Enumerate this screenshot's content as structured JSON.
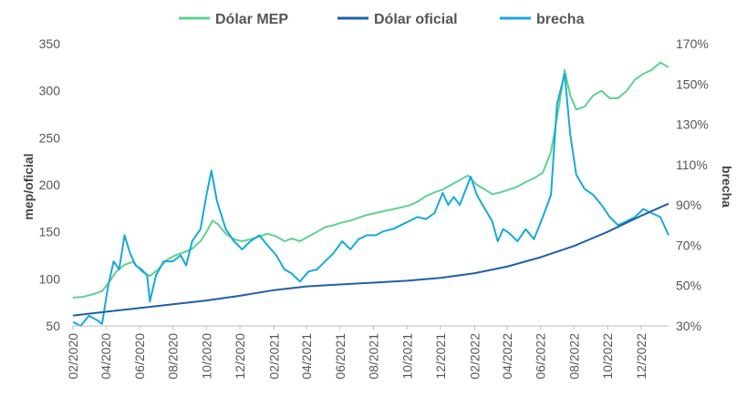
{
  "chart_data": {
    "type": "line",
    "title": "",
    "ylabel": "mep/oficial",
    "y2label": "brecha",
    "ylim": [
      50,
      350
    ],
    "y2lim": [
      30,
      170
    ],
    "yticks": [
      "50",
      "100",
      "150",
      "200",
      "250",
      "300",
      "350"
    ],
    "y2ticks": [
      "30%",
      "50%",
      "70%",
      "90%",
      "110%",
      "130%",
      "150%",
      "170%"
    ],
    "xticks": [
      "02/2020",
      "04/2020",
      "06/2020",
      "08/2020",
      "10/2020",
      "12/2020",
      "02/2021",
      "04/2021",
      "06/2021",
      "08/2021",
      "10/2021",
      "12/2021",
      "02/2022",
      "04/2022",
      "06/2022",
      "08/2022",
      "10/2022",
      "12/2022"
    ],
    "xrange": [
      "2020-02-01",
      "2023-01-20"
    ],
    "legend_position": "top",
    "grid": false,
    "series": [
      {
        "name": "Dólar MEP",
        "axis": "left",
        "color": "#5fd18f",
        "points": [
          [
            "2020-02-01",
            80
          ],
          [
            "2020-02-20",
            81
          ],
          [
            "2020-03-10",
            84
          ],
          [
            "2020-03-25",
            87
          ],
          [
            "2020-04-05",
            95
          ],
          [
            "2020-04-20",
            108
          ],
          [
            "2020-05-05",
            115
          ],
          [
            "2020-05-20",
            118
          ],
          [
            "2020-06-05",
            108
          ],
          [
            "2020-06-20",
            103
          ],
          [
            "2020-07-05",
            110
          ],
          [
            "2020-07-20",
            120
          ],
          [
            "2020-08-05",
            125
          ],
          [
            "2020-08-20",
            128
          ],
          [
            "2020-09-05",
            132
          ],
          [
            "2020-09-20",
            140
          ],
          [
            "2020-10-01",
            150
          ],
          [
            "2020-10-12",
            162
          ],
          [
            "2020-10-22",
            158
          ],
          [
            "2020-11-05",
            148
          ],
          [
            "2020-11-20",
            142
          ],
          [
            "2020-12-05",
            140
          ],
          [
            "2020-12-20",
            142
          ],
          [
            "2021-01-05",
            145
          ],
          [
            "2021-01-20",
            148
          ],
          [
            "2021-02-05",
            145
          ],
          [
            "2021-02-20",
            140
          ],
          [
            "2021-03-05",
            143
          ],
          [
            "2021-03-20",
            140
          ],
          [
            "2021-04-05",
            145
          ],
          [
            "2021-04-20",
            150
          ],
          [
            "2021-05-05",
            155
          ],
          [
            "2021-05-20",
            157
          ],
          [
            "2021-06-05",
            160
          ],
          [
            "2021-06-20",
            162
          ],
          [
            "2021-07-05",
            165
          ],
          [
            "2021-07-20",
            168
          ],
          [
            "2021-08-05",
            170
          ],
          [
            "2021-08-20",
            172
          ],
          [
            "2021-09-05",
            174
          ],
          [
            "2021-09-20",
            176
          ],
          [
            "2021-10-05",
            178
          ],
          [
            "2021-10-20",
            182
          ],
          [
            "2021-11-05",
            188
          ],
          [
            "2021-11-20",
            192
          ],
          [
            "2021-12-05",
            195
          ],
          [
            "2021-12-20",
            200
          ],
          [
            "2022-01-05",
            205
          ],
          [
            "2022-01-20",
            210
          ],
          [
            "2022-02-05",
            200
          ],
          [
            "2022-02-20",
            195
          ],
          [
            "2022-03-05",
            190
          ],
          [
            "2022-03-20",
            192
          ],
          [
            "2022-04-05",
            195
          ],
          [
            "2022-04-20",
            198
          ],
          [
            "2022-05-05",
            203
          ],
          [
            "2022-05-20",
            207
          ],
          [
            "2022-06-05",
            213
          ],
          [
            "2022-06-20",
            235
          ],
          [
            "2022-07-05",
            285
          ],
          [
            "2022-07-15",
            322
          ],
          [
            "2022-07-25",
            295
          ],
          [
            "2022-08-05",
            280
          ],
          [
            "2022-08-20",
            283
          ],
          [
            "2022-09-05",
            295
          ],
          [
            "2022-09-20",
            300
          ],
          [
            "2022-10-05",
            292
          ],
          [
            "2022-10-20",
            292
          ],
          [
            "2022-11-05",
            300
          ],
          [
            "2022-11-20",
            312
          ],
          [
            "2022-12-05",
            318
          ],
          [
            "2022-12-20",
            322
          ],
          [
            "2023-01-05",
            330
          ],
          [
            "2023-01-20",
            325
          ]
        ]
      },
      {
        "name": "Dólar oficial",
        "axis": "left",
        "color": "#1f5fa8",
        "points": [
          [
            "2020-02-01",
            61
          ],
          [
            "2020-04-01",
            65
          ],
          [
            "2020-06-01",
            69
          ],
          [
            "2020-08-01",
            73
          ],
          [
            "2020-10-01",
            77
          ],
          [
            "2020-12-01",
            82
          ],
          [
            "2021-02-01",
            88
          ],
          [
            "2021-04-01",
            92
          ],
          [
            "2021-06-01",
            94
          ],
          [
            "2021-08-01",
            96
          ],
          [
            "2021-10-01",
            98
          ],
          [
            "2021-12-01",
            101
          ],
          [
            "2022-02-01",
            106
          ],
          [
            "2022-04-01",
            113
          ],
          [
            "2022-06-01",
            123
          ],
          [
            "2022-08-01",
            135
          ],
          [
            "2022-10-01",
            150
          ],
          [
            "2022-12-01",
            167
          ],
          [
            "2023-01-20",
            180
          ]
        ]
      },
      {
        "name": "brecha",
        "axis": "right",
        "color": "#16a9db",
        "points": [
          [
            "2020-02-01",
            32
          ],
          [
            "2020-02-15",
            30
          ],
          [
            "2020-03-01",
            35
          ],
          [
            "2020-03-15",
            33
          ],
          [
            "2020-03-25",
            31
          ],
          [
            "2020-04-05",
            50
          ],
          [
            "2020-04-15",
            62
          ],
          [
            "2020-04-25",
            58
          ],
          [
            "2020-05-05",
            75
          ],
          [
            "2020-05-15",
            66
          ],
          [
            "2020-05-25",
            60
          ],
          [
            "2020-06-05",
            58
          ],
          [
            "2020-06-15",
            55
          ],
          [
            "2020-06-20",
            42
          ],
          [
            "2020-07-01",
            55
          ],
          [
            "2020-07-15",
            62
          ],
          [
            "2020-08-01",
            62
          ],
          [
            "2020-08-15",
            65
          ],
          [
            "2020-08-25",
            60
          ],
          [
            "2020-09-05",
            72
          ],
          [
            "2020-09-20",
            78
          ],
          [
            "2020-10-01",
            95
          ],
          [
            "2020-10-10",
            107
          ],
          [
            "2020-10-20",
            92
          ],
          [
            "2020-11-05",
            78
          ],
          [
            "2020-11-20",
            72
          ],
          [
            "2020-12-05",
            68
          ],
          [
            "2020-12-20",
            72
          ],
          [
            "2021-01-05",
            75
          ],
          [
            "2021-01-20",
            70
          ],
          [
            "2021-02-05",
            65
          ],
          [
            "2021-02-20",
            58
          ],
          [
            "2021-03-05",
            56
          ],
          [
            "2021-03-20",
            52
          ],
          [
            "2021-04-05",
            57
          ],
          [
            "2021-04-20",
            58
          ],
          [
            "2021-05-05",
            62
          ],
          [
            "2021-05-20",
            66
          ],
          [
            "2021-06-05",
            72
          ],
          [
            "2021-06-20",
            68
          ],
          [
            "2021-07-05",
            73
          ],
          [
            "2021-07-20",
            75
          ],
          [
            "2021-08-05",
            75
          ],
          [
            "2021-08-20",
            77
          ],
          [
            "2021-09-05",
            78
          ],
          [
            "2021-09-20",
            80
          ],
          [
            "2021-10-05",
            82
          ],
          [
            "2021-10-20",
            84
          ],
          [
            "2021-11-05",
            83
          ],
          [
            "2021-11-20",
            86
          ],
          [
            "2021-12-05",
            96
          ],
          [
            "2021-12-15",
            90
          ],
          [
            "2021-12-25",
            94
          ],
          [
            "2022-01-05",
            90
          ],
          [
            "2022-01-15",
            97
          ],
          [
            "2022-01-25",
            104
          ],
          [
            "2022-02-05",
            95
          ],
          [
            "2022-02-20",
            88
          ],
          [
            "2022-03-05",
            82
          ],
          [
            "2022-03-15",
            72
          ],
          [
            "2022-03-25",
            78
          ],
          [
            "2022-04-05",
            76
          ],
          [
            "2022-04-20",
            72
          ],
          [
            "2022-05-05",
            78
          ],
          [
            "2022-05-20",
            73
          ],
          [
            "2022-06-05",
            84
          ],
          [
            "2022-06-20",
            95
          ],
          [
            "2022-07-01",
            140
          ],
          [
            "2022-07-15",
            155
          ],
          [
            "2022-07-25",
            125
          ],
          [
            "2022-08-05",
            105
          ],
          [
            "2022-08-20",
            98
          ],
          [
            "2022-09-05",
            95
          ],
          [
            "2022-09-20",
            90
          ],
          [
            "2022-10-05",
            84
          ],
          [
            "2022-10-20",
            80
          ],
          [
            "2022-11-05",
            82
          ],
          [
            "2022-11-20",
            84
          ],
          [
            "2022-12-05",
            88
          ],
          [
            "2022-12-20",
            86
          ],
          [
            "2023-01-05",
            84
          ],
          [
            "2023-01-20",
            75
          ]
        ]
      }
    ]
  }
}
